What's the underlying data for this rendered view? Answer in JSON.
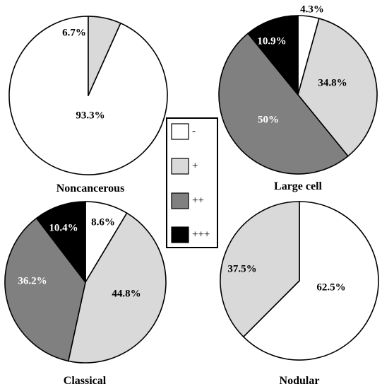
{
  "colors": {
    "minus": "#ffffff",
    "plus": "#d9d9d9",
    "plusplus": "#808080",
    "plusplusplus": "#000000",
    "outline": "#000000"
  },
  "legend": {
    "items": [
      {
        "label": "-",
        "color_key": "minus"
      },
      {
        "label": "+",
        "color_key": "plus"
      },
      {
        "label": "++",
        "color_key": "plusplus"
      },
      {
        "label": "+++",
        "color_key": "plusplusplus"
      }
    ]
  },
  "chart_data": [
    {
      "type": "pie",
      "title": "Noncancerous",
      "slices": [
        {
          "category": "-",
          "value": 93.3,
          "label": "93.3%",
          "color_key": "minus"
        },
        {
          "category": "+",
          "value": 6.7,
          "label": "6.7%",
          "color_key": "plus"
        }
      ]
    },
    {
      "type": "pie",
      "title": "Large cell",
      "slices": [
        {
          "category": "-",
          "value": 4.3,
          "label": "4.3%",
          "color_key": "minus"
        },
        {
          "category": "+",
          "value": 34.8,
          "label": "34.8%",
          "color_key": "plus"
        },
        {
          "category": "++",
          "value": 50,
          "label": "50%",
          "color_key": "plusplus"
        },
        {
          "category": "+++",
          "value": 10.9,
          "label": "10.9%",
          "color_key": "plusplusplus"
        }
      ]
    },
    {
      "type": "pie",
      "title": "Classical",
      "slices": [
        {
          "category": "-",
          "value": 8.6,
          "label": "8.6%",
          "color_key": "minus"
        },
        {
          "category": "+",
          "value": 44.8,
          "label": "44.8%",
          "color_key": "plus"
        },
        {
          "category": "++",
          "value": 36.2,
          "label": "36.2%",
          "color_key": "plusplus"
        },
        {
          "category": "+++",
          "value": 10.4,
          "label": "10.4%",
          "color_key": "plusplusplus"
        }
      ]
    },
    {
      "type": "pie",
      "title": "Nodular",
      "slices": [
        {
          "category": "-",
          "value": 62.5,
          "label": "62.5%",
          "color_key": "minus"
        },
        {
          "category": "+",
          "value": 37.5,
          "label": "37.5%",
          "color_key": "plus"
        }
      ]
    }
  ]
}
